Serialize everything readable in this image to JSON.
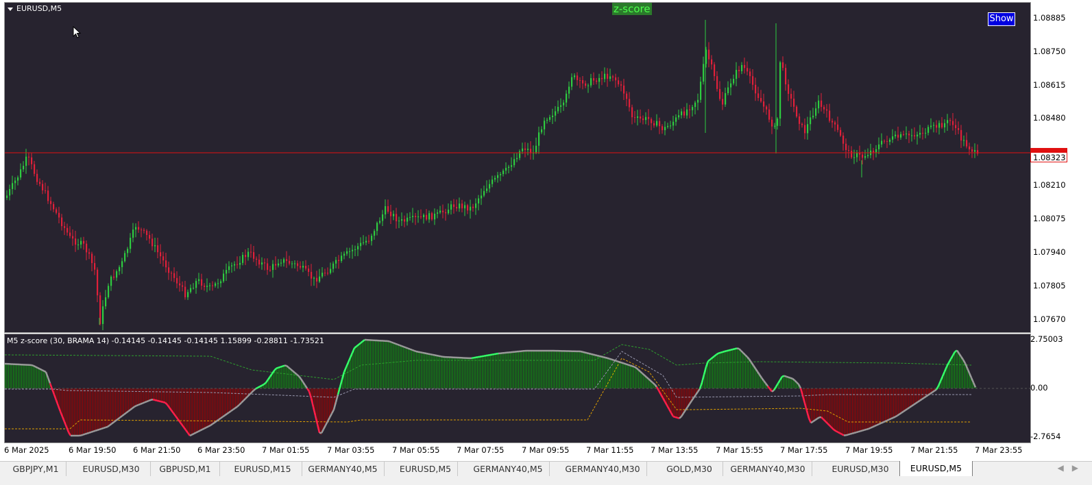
{
  "window": {
    "symbol_title": "EURUSD,M5",
    "zscore_label": "z-score",
    "show_button": "Show"
  },
  "price_axis": {
    "labels": [
      "1.08885",
      "1.08750",
      "1.08615",
      "1.08480",
      "1.08210",
      "1.08075",
      "1.07940",
      "1.07805",
      "1.07670"
    ],
    "current_price": "1.08323",
    "current_price_color": "#e01010"
  },
  "indicator": {
    "title": "M5 z-score (30, BRAMA 14) -0.14145 -0.14145 -0.14145 1.15899 -0.28811 -1.73521",
    "axis_labels": [
      "2.75003",
      "0.00",
      "-2.7654"
    ],
    "up_color": "#35ff6a",
    "down_color": "#ff1f4a",
    "hist_up_color": "#0f8f10",
    "hist_down_color": "#a00000"
  },
  "time_axis": {
    "labels": [
      "6 Mar 2025",
      "6 Mar 19:50",
      "6 Mar 21:50",
      "6 Mar 23:50",
      "7 Mar 01:55",
      "7 Mar 03:55",
      "7 Mar 05:55",
      "7 Mar 07:55",
      "7 Mar 09:55",
      "7 Mar 11:55",
      "7 Mar 13:55",
      "7 Mar 15:55",
      "7 Mar 17:55",
      "7 Mar 19:55",
      "7 Mar 21:55",
      "7 Mar 23:55"
    ]
  },
  "tabs": [
    {
      "label": "GBPJPY,M1",
      "active": false
    },
    {
      "label": "EURUSD,M30",
      "active": false
    },
    {
      "label": "GBPUSD,M1",
      "active": false
    },
    {
      "label": "EURUSD,M15",
      "active": false
    },
    {
      "label": "GERMANY40,M5",
      "active": false
    },
    {
      "label": "EURUSD,M5",
      "active": false
    },
    {
      "label": "GERMANY40,M5",
      "active": false
    },
    {
      "label": "GERMANY40,M30",
      "active": false
    },
    {
      "label": "GOLD,M30",
      "active": false
    },
    {
      "label": "GERMANY40,M30",
      "active": false
    },
    {
      "label": "EURUSD,M30",
      "active": false
    },
    {
      "label": "EURUSD,M5",
      "active": true
    }
  ],
  "tab_scroll": {
    "left": "◀",
    "right": "▶"
  },
  "colors": {
    "chart_bg": "#27232f",
    "bull_candle": "#2ecc40",
    "bear_candle": "#e0203a",
    "price_line": "#e01010"
  }
}
